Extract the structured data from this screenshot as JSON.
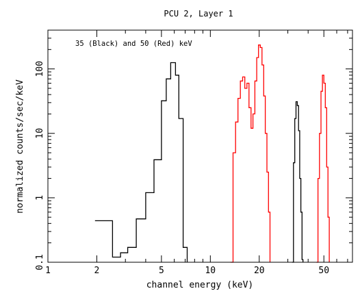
{
  "chart_data": {
    "type": "line",
    "title": "PCU 2, Layer 1",
    "xlabel": "channel energy (keV)",
    "ylabel": "normalized counts/sec/keV",
    "annotation": "35 (Black) and 50 (Red) keV",
    "xscale": "log",
    "yscale": "log",
    "xlim": [
      1,
      75
    ],
    "ylim": [
      0.1,
      400
    ],
    "x_ticks": [
      1,
      2,
      5,
      10,
      20,
      50
    ],
    "x_tick_labels": [
      "1",
      "2",
      "5",
      "10",
      "20",
      "50"
    ],
    "y_ticks": [
      0.1,
      1,
      10,
      100
    ],
    "y_tick_labels": [
      "0.1",
      "1",
      "10",
      "100"
    ],
    "series": [
      {
        "color": "#000000",
        "style": "step",
        "steps": [
          [
            2.5,
            0.12
          ],
          [
            2.8,
            0.14
          ],
          [
            3.1,
            0.17
          ],
          [
            3.5,
            0.47
          ],
          [
            4.0,
            1.2
          ],
          [
            4.5,
            3.9
          ],
          [
            5.0,
            32
          ],
          [
            5.35,
            70
          ],
          [
            5.7,
            125
          ],
          [
            6.1,
            80
          ],
          [
            6.4,
            17
          ],
          [
            6.8,
            0.17
          ]
        ],
        "start": [
          1.95,
          0.44
        ],
        "end_x": 7.2
      },
      {
        "color": "#000000",
        "style": "step",
        "steps": [
          [
            32.5,
            3.5
          ],
          [
            33.1,
            17
          ],
          [
            33.7,
            31
          ],
          [
            34.3,
            27
          ],
          [
            34.9,
            11
          ],
          [
            35.5,
            2.0
          ],
          [
            36.1,
            0.6
          ],
          [
            36.7,
            0.11
          ]
        ],
        "start": [
          31.8,
          0.1
        ],
        "end_x": 37.2
      },
      {
        "color": "#ff0000",
        "style": "step",
        "steps": [
          [
            13.8,
            5
          ],
          [
            14.3,
            15
          ],
          [
            14.8,
            35
          ],
          [
            15.3,
            65
          ],
          [
            15.8,
            75
          ],
          [
            16.3,
            50
          ],
          [
            16.8,
            60
          ],
          [
            17.3,
            25
          ],
          [
            17.8,
            12
          ],
          [
            18.3,
            20
          ],
          [
            18.8,
            65
          ],
          [
            19.3,
            150
          ],
          [
            19.8,
            235
          ],
          [
            20.3,
            215
          ],
          [
            20.8,
            115
          ],
          [
            21.3,
            38
          ],
          [
            21.8,
            10
          ],
          [
            22.3,
            2.5
          ],
          [
            22.8,
            0.6
          ]
        ],
        "start": [
          13.3,
          0.1
        ],
        "end_x": 23.3
      },
      {
        "color": "#ff0000",
        "style": "step",
        "steps": [
          [
            46.0,
            2.0
          ],
          [
            47.0,
            10
          ],
          [
            48.0,
            45
          ],
          [
            49.0,
            80
          ],
          [
            50.0,
            60
          ],
          [
            51.0,
            25
          ],
          [
            52.0,
            3.0
          ],
          [
            53.0,
            0.5
          ]
        ],
        "start": [
          45.0,
          0.1
        ],
        "end_x": 54.0
      }
    ]
  }
}
